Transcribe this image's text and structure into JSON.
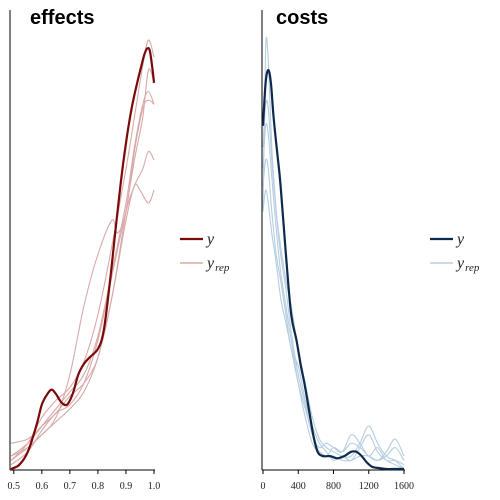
{
  "chart_data": [
    {
      "type": "line",
      "title": "effects",
      "xlim": [
        0.49,
        1.0
      ],
      "x_ticks": [
        0.5,
        0.6,
        0.7,
        0.8,
        0.9,
        1.0
      ],
      "x_tick_labels": [
        "0.5",
        "0.6",
        "0.7",
        "0.8",
        "0.9",
        "1.0"
      ],
      "y_axis_labels": "none",
      "colors": {
        "y": "#7a0a0a",
        "yrep": "#d9a9a9"
      },
      "legend": {
        "y_label": "y",
        "yrep_base": "y",
        "yrep_sub": "rep",
        "placement": "right"
      },
      "y_series": {
        "name": "y",
        "x": [
          0.49,
          0.52,
          0.55,
          0.58,
          0.6,
          0.62,
          0.635,
          0.65,
          0.67,
          0.69,
          0.71,
          0.73,
          0.75,
          0.77,
          0.8,
          0.82,
          0.84,
          0.86,
          0.88,
          0.9,
          0.92,
          0.94,
          0.955,
          0.965,
          0.975,
          0.985,
          0.995,
          1.0
        ],
        "y": [
          0.0,
          0.01,
          0.04,
          0.1,
          0.15,
          0.175,
          0.185,
          0.175,
          0.155,
          0.15,
          0.175,
          0.22,
          0.245,
          0.26,
          0.28,
          0.32,
          0.42,
          0.54,
          0.66,
          0.76,
          0.84,
          0.9,
          0.94,
          0.965,
          0.98,
          0.975,
          0.93,
          0.9
        ]
      },
      "yrep_series": [
        {
          "x": [
            0.49,
            0.55,
            0.6,
            0.65,
            0.7,
            0.75,
            0.8,
            0.85,
            0.9,
            0.93,
            0.96,
            0.98,
            1.0
          ],
          "y": [
            0.02,
            0.06,
            0.12,
            0.16,
            0.19,
            0.25,
            0.36,
            0.52,
            0.7,
            0.82,
            0.94,
            1.0,
            0.96
          ]
        },
        {
          "x": [
            0.49,
            0.55,
            0.6,
            0.65,
            0.7,
            0.75,
            0.8,
            0.85,
            0.87,
            0.9,
            0.93,
            0.96,
            0.98,
            1.0
          ],
          "y": [
            0.03,
            0.05,
            0.08,
            0.12,
            0.22,
            0.38,
            0.5,
            0.58,
            0.55,
            0.6,
            0.74,
            0.84,
            0.86,
            0.85
          ]
        },
        {
          "x": [
            0.49,
            0.55,
            0.6,
            0.65,
            0.7,
            0.75,
            0.8,
            0.85,
            0.9,
            0.93,
            0.95,
            0.98,
            1.0
          ],
          "y": [
            0.06,
            0.07,
            0.1,
            0.13,
            0.17,
            0.2,
            0.26,
            0.4,
            0.58,
            0.66,
            0.65,
            0.62,
            0.65
          ]
        },
        {
          "x": [
            0.49,
            0.55,
            0.6,
            0.65,
            0.7,
            0.75,
            0.8,
            0.85,
            0.9,
            0.93,
            0.96,
            0.98,
            1.0
          ],
          "y": [
            0.01,
            0.04,
            0.09,
            0.13,
            0.15,
            0.2,
            0.3,
            0.45,
            0.6,
            0.66,
            0.7,
            0.74,
            0.72
          ]
        },
        {
          "x": [
            0.49,
            0.55,
            0.6,
            0.65,
            0.7,
            0.75,
            0.8,
            0.85,
            0.9,
            0.93,
            0.96,
            0.98,
            1.0
          ],
          "y": [
            0.03,
            0.06,
            0.1,
            0.14,
            0.18,
            0.22,
            0.31,
            0.46,
            0.62,
            0.75,
            0.85,
            0.88,
            0.85
          ]
        },
        {
          "x": [
            0.49,
            0.55,
            0.6,
            0.65,
            0.7,
            0.75,
            0.8,
            0.85,
            0.9,
            0.93,
            0.96,
            0.98,
            1.0
          ],
          "y": [
            0.02,
            0.05,
            0.08,
            0.11,
            0.14,
            0.18,
            0.26,
            0.4,
            0.6,
            0.72,
            0.82,
            0.93,
            0.9
          ]
        }
      ]
    },
    {
      "type": "line",
      "title": "costs",
      "xlim": [
        0,
        1600
      ],
      "x_ticks": [
        0,
        400,
        800,
        1200,
        1600
      ],
      "x_tick_labels": [
        "0",
        "400",
        "800",
        "1200",
        "1600"
      ],
      "y_axis_labels": "none",
      "colors": {
        "y": "#0d2a4d",
        "yrep": "#b7cde0"
      },
      "legend": {
        "y_label": "y",
        "yrep_base": "y",
        "yrep_sub": "rep",
        "placement": "right"
      },
      "y_series": {
        "name": "y",
        "x": [
          0,
          30,
          60,
          90,
          120,
          160,
          200,
          260,
          320,
          380,
          430,
          470,
          520,
          570,
          620,
          680,
          760,
          840,
          920,
          1000,
          1060,
          1120,
          1180,
          1240,
          1320,
          1400,
          1500,
          1600
        ],
        "y": [
          0.8,
          0.9,
          0.93,
          0.9,
          0.82,
          0.74,
          0.66,
          0.5,
          0.36,
          0.3,
          0.24,
          0.2,
          0.14,
          0.08,
          0.04,
          0.03,
          0.03,
          0.025,
          0.03,
          0.04,
          0.04,
          0.03,
          0.015,
          0.005,
          0.002,
          0.0,
          0.0,
          0.0
        ]
      },
      "yrep_series": [
        {
          "x": [
            0,
            30,
            60,
            100,
            150,
            200,
            260,
            320,
            400,
            480,
            560,
            640,
            720,
            800,
            900,
            1000,
            1100,
            1200,
            1300,
            1400,
            1500,
            1600
          ],
          "y": [
            0.6,
            0.98,
            0.95,
            0.75,
            0.6,
            0.5,
            0.42,
            0.32,
            0.22,
            0.15,
            0.08,
            0.05,
            0.06,
            0.05,
            0.04,
            0.08,
            0.06,
            0.03,
            0.05,
            0.02,
            0.02,
            0.01
          ]
        },
        {
          "x": [
            0,
            30,
            60,
            100,
            150,
            200,
            260,
            320,
            400,
            480,
            560,
            640,
            720,
            800,
            900,
            1000,
            1100,
            1200,
            1300,
            1400,
            1500,
            1600
          ],
          "y": [
            0.6,
            0.65,
            0.62,
            0.55,
            0.48,
            0.4,
            0.34,
            0.28,
            0.2,
            0.14,
            0.08,
            0.04,
            0.03,
            0.05,
            0.04,
            0.06,
            0.05,
            0.03,
            0.02,
            0.04,
            0.07,
            0.03
          ]
        },
        {
          "x": [
            0,
            30,
            60,
            100,
            150,
            200,
            260,
            320,
            400,
            480,
            560,
            640,
            720,
            800,
            900,
            1000,
            1100,
            1200,
            1300,
            1400,
            1500,
            1600
          ],
          "y": [
            0.66,
            0.72,
            0.7,
            0.6,
            0.5,
            0.44,
            0.36,
            0.28,
            0.24,
            0.16,
            0.1,
            0.06,
            0.04,
            0.02,
            0.03,
            0.02,
            0.05,
            0.08,
            0.04,
            0.02,
            0.01,
            0.0
          ]
        },
        {
          "x": [
            0,
            30,
            60,
            100,
            150,
            200,
            260,
            320,
            400,
            480,
            560,
            640,
            720,
            800,
            900,
            1000,
            1100,
            1200,
            1300,
            1400,
            1500,
            1600
          ],
          "y": [
            0.7,
            0.8,
            0.78,
            0.68,
            0.56,
            0.46,
            0.38,
            0.3,
            0.2,
            0.12,
            0.06,
            0.04,
            0.03,
            0.03,
            0.02,
            0.02,
            0.03,
            0.03,
            0.02,
            0.03,
            0.05,
            0.02
          ]
        },
        {
          "x": [
            0,
            30,
            60,
            100,
            150,
            200,
            260,
            320,
            400,
            480,
            560,
            640,
            720,
            800,
            900,
            1000,
            1100,
            1200,
            1300,
            1400,
            1500,
            1600
          ],
          "y": [
            0.75,
            0.85,
            0.84,
            0.72,
            0.6,
            0.52,
            0.44,
            0.38,
            0.28,
            0.2,
            0.12,
            0.07,
            0.05,
            0.04,
            0.03,
            0.03,
            0.06,
            0.1,
            0.06,
            0.03,
            0.02,
            0.0
          ]
        }
      ]
    }
  ]
}
